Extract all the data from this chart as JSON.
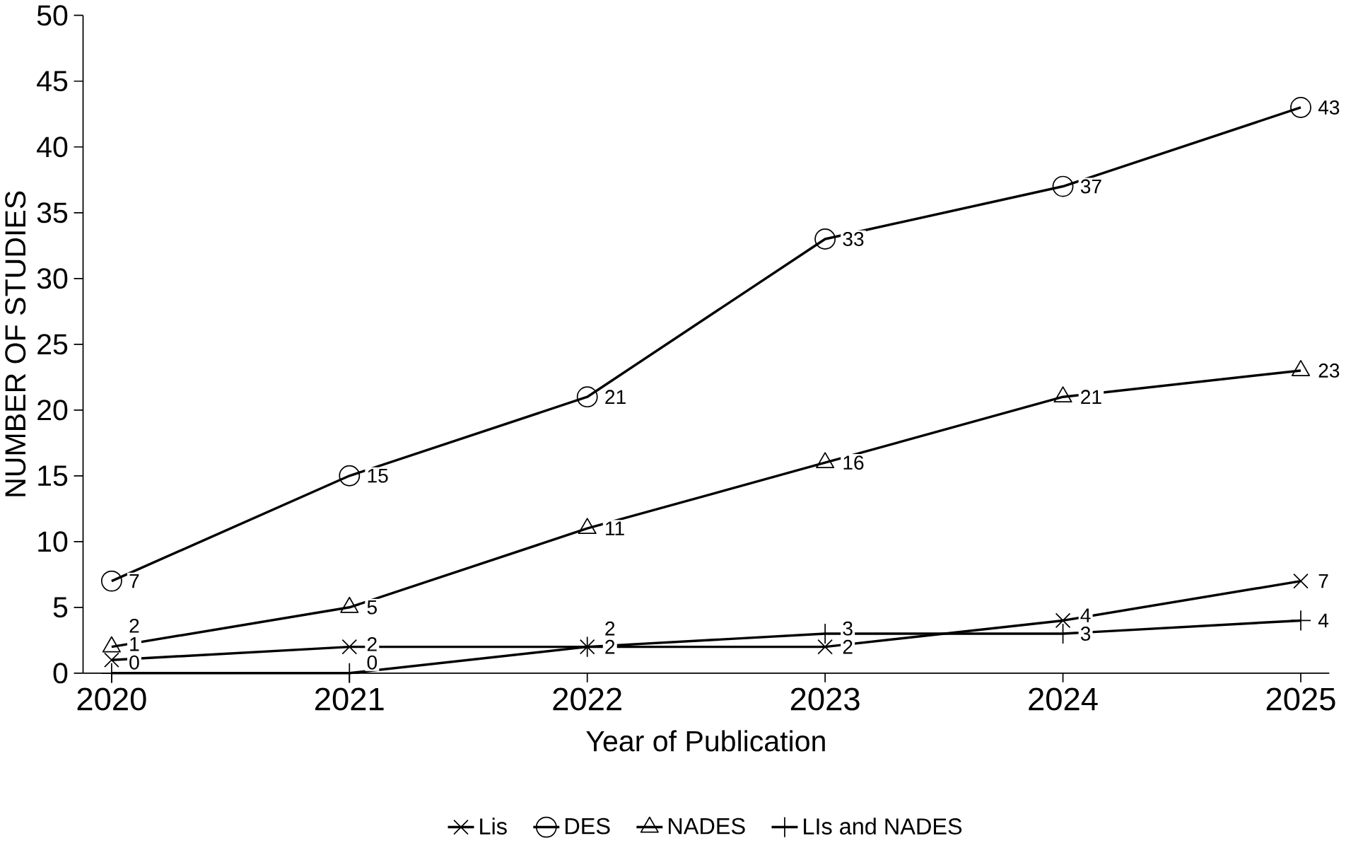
{
  "chart_data": {
    "type": "line",
    "xlabel": "Year of Publication",
    "ylabel": "NUMBER OF STUDIES",
    "categories": [
      "2020",
      "2021",
      "2022",
      "2023",
      "2024",
      "2025"
    ],
    "ylim": [
      0,
      50
    ],
    "yticks": [
      0,
      5,
      10,
      15,
      20,
      25,
      30,
      35,
      40,
      45,
      50
    ],
    "series": [
      {
        "name": "Lis",
        "color": "#000000",
        "marker": "cross",
        "values": [
          1,
          2,
          2,
          2,
          4,
          7
        ]
      },
      {
        "name": "DES",
        "color": "#000000",
        "marker": "circle",
        "values": [
          7,
          15,
          21,
          33,
          37,
          43
        ]
      },
      {
        "name": "NADES",
        "color": "#000000",
        "marker": "triangle",
        "values": [
          2,
          5,
          11,
          16,
          21,
          23
        ]
      },
      {
        "name": "LIs and NADES",
        "color": "#000000",
        "marker": "plus",
        "values": [
          0,
          0,
          2,
          3,
          3,
          4
        ]
      }
    ],
    "data_labels": true,
    "grid": false,
    "legend": "bottom",
    "line_style": "solid"
  }
}
